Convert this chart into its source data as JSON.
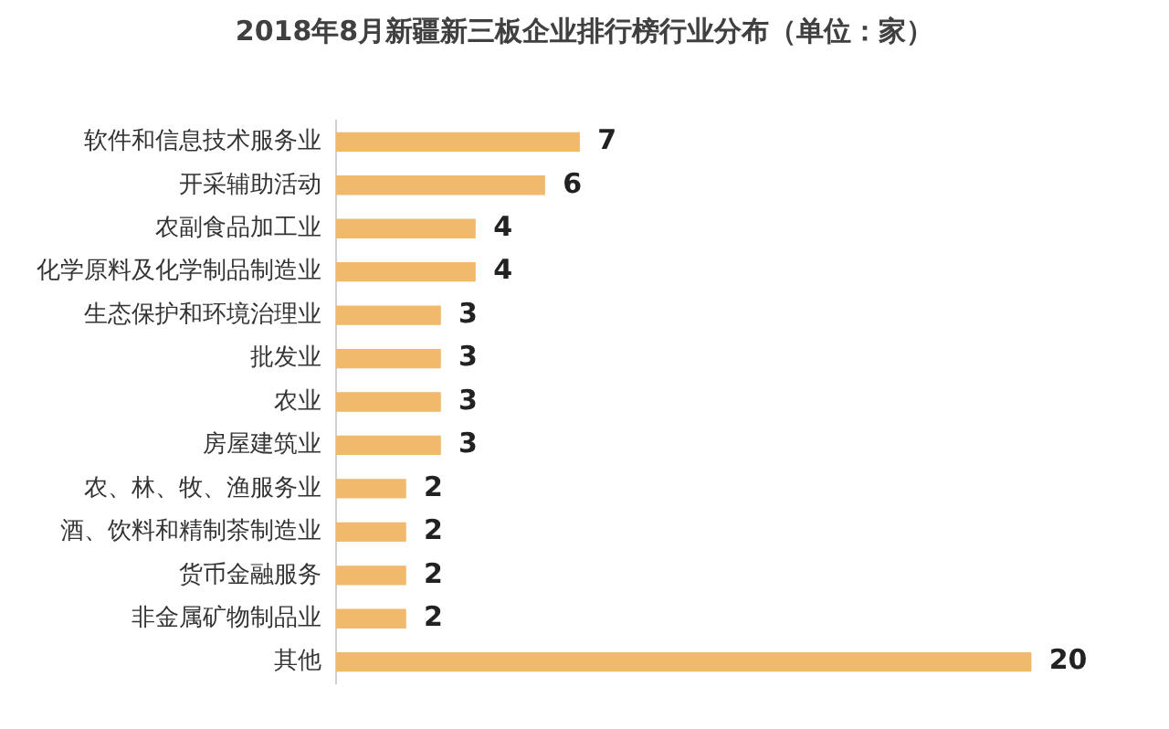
{
  "chart_data": {
    "type": "bar",
    "orientation": "horizontal",
    "title": "2018年8月新疆新三板企业排行榜行业分布（单位：家）",
    "categories": [
      "软件和信息技术服务业",
      "开采辅助活动",
      "农副食品加工业",
      "化学原料及化学制品制造业",
      "生态保护和环境治理业",
      "批发业",
      "农业",
      "房屋建筑业",
      "农、林、牧、渔服务业",
      "酒、饮料和精制茶制造业",
      "货币金融服务",
      "非金属矿物制品业",
      "其他"
    ],
    "values": [
      7,
      6,
      4,
      4,
      3,
      3,
      3,
      3,
      2,
      2,
      2,
      2,
      20
    ],
    "color": "#f0b96b",
    "data_labels": true
  }
}
